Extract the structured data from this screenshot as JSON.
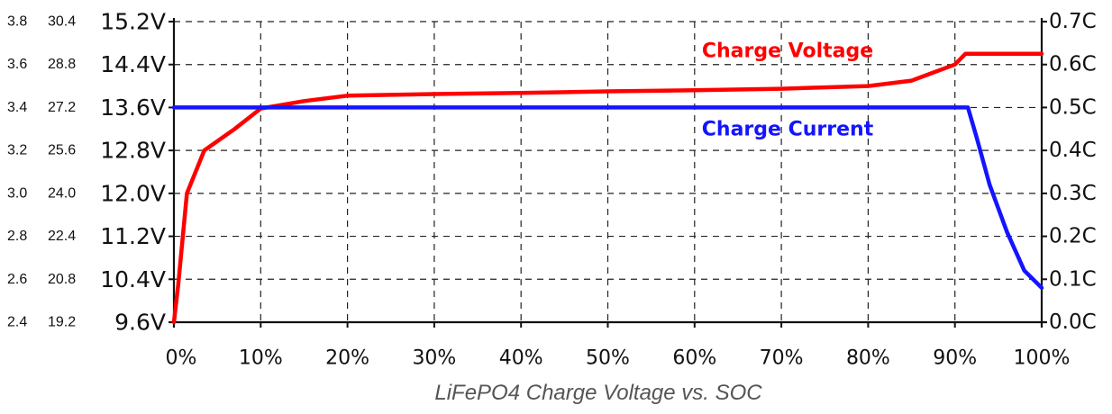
{
  "chart_data": {
    "type": "line",
    "title": "LiFePO4 Charge Voltage vs. SOC",
    "x_ticks": [
      "0%",
      "10%",
      "20%",
      "30%",
      "40%",
      "50%",
      "60%",
      "70%",
      "80%",
      "90%",
      "100%"
    ],
    "xlim": [
      0,
      100
    ],
    "ylim_left": [
      9.6,
      15.2
    ],
    "ylim_right": [
      0.0,
      0.7
    ],
    "y_ticks_left": [
      "9.6V",
      "10.4V",
      "11.2V",
      "12.0V",
      "12.8V",
      "13.6V",
      "14.4V",
      "15.2V"
    ],
    "y_ticks_left_cell": [
      "2.4",
      "2.6",
      "2.8",
      "3.0",
      "3.2",
      "3.4",
      "3.6",
      "3.8"
    ],
    "y_ticks_left_24v": [
      "19.2",
      "20.8",
      "22.4",
      "24.0",
      "25.6",
      "27.2",
      "28.8",
      "30.4"
    ],
    "y_ticks_right": [
      "0.0C",
      "0.1C",
      "0.2C",
      "0.3C",
      "0.4C",
      "0.5C",
      "0.6C",
      "0.7C"
    ],
    "grid": true,
    "series": [
      {
        "name": "Charge Voltage",
        "axis": "left",
        "color": "#ff0000",
        "points": [
          [
            0,
            9.6
          ],
          [
            0.5,
            10.3
          ],
          [
            1.5,
            12.0
          ],
          [
            3.5,
            12.8
          ],
          [
            7,
            13.2
          ],
          [
            10,
            13.58
          ],
          [
            15,
            13.72
          ],
          [
            20,
            13.82
          ],
          [
            30,
            13.85
          ],
          [
            40,
            13.87
          ],
          [
            50,
            13.9
          ],
          [
            60,
            13.92
          ],
          [
            70,
            13.95
          ],
          [
            80,
            14.0
          ],
          [
            85,
            14.1
          ],
          [
            90,
            14.4
          ],
          [
            91.2,
            14.6
          ],
          [
            100,
            14.6
          ]
        ]
      },
      {
        "name": "Charge Current",
        "axis": "right",
        "color": "#1414ff",
        "points": [
          [
            0,
            0.5
          ],
          [
            91.5,
            0.5
          ],
          [
            92.5,
            0.43
          ],
          [
            94,
            0.32
          ],
          [
            96,
            0.21
          ],
          [
            98,
            0.12
          ],
          [
            100,
            0.08
          ]
        ]
      }
    ]
  }
}
